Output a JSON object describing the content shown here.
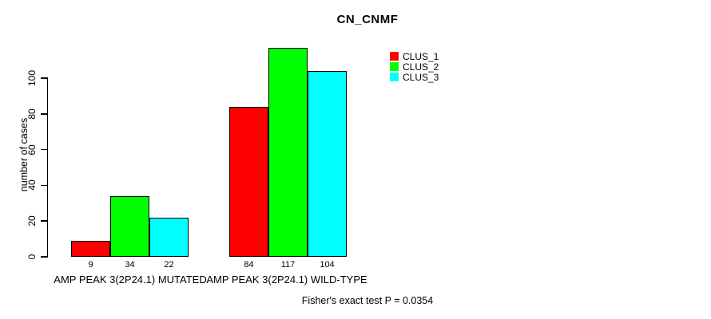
{
  "chart_data": {
    "type": "bar",
    "title": "CN_CNMF",
    "ylabel": "number of cases",
    "xlabel": "",
    "categories": [
      "AMP PEAK 3(2P24.1) MUTATED",
      "AMP PEAK 3(2P24.1) WILD-TYPE"
    ],
    "series": [
      {
        "name": "CLUS_1",
        "color": "#ff0000",
        "values": [
          9,
          84
        ]
      },
      {
        "name": "CLUS_2",
        "color": "#00ff00",
        "values": [
          34,
          117
        ]
      },
      {
        "name": "CLUS_3",
        "color": "#00ffff",
        "values": [
          22,
          104
        ]
      }
    ],
    "bar_value_labels": [
      [
        "9",
        "34",
        "22"
      ],
      [
        "84",
        "117",
        "104"
      ]
    ],
    "yticks": [
      0,
      20,
      40,
      60,
      80,
      100
    ],
    "ylim": [
      0,
      118
    ],
    "grid": false,
    "legend_position": "top-right",
    "annotation": "Fisher's exact test P = 0.0354",
    "background_color": "#ffffff",
    "axis_color": "#000000"
  }
}
